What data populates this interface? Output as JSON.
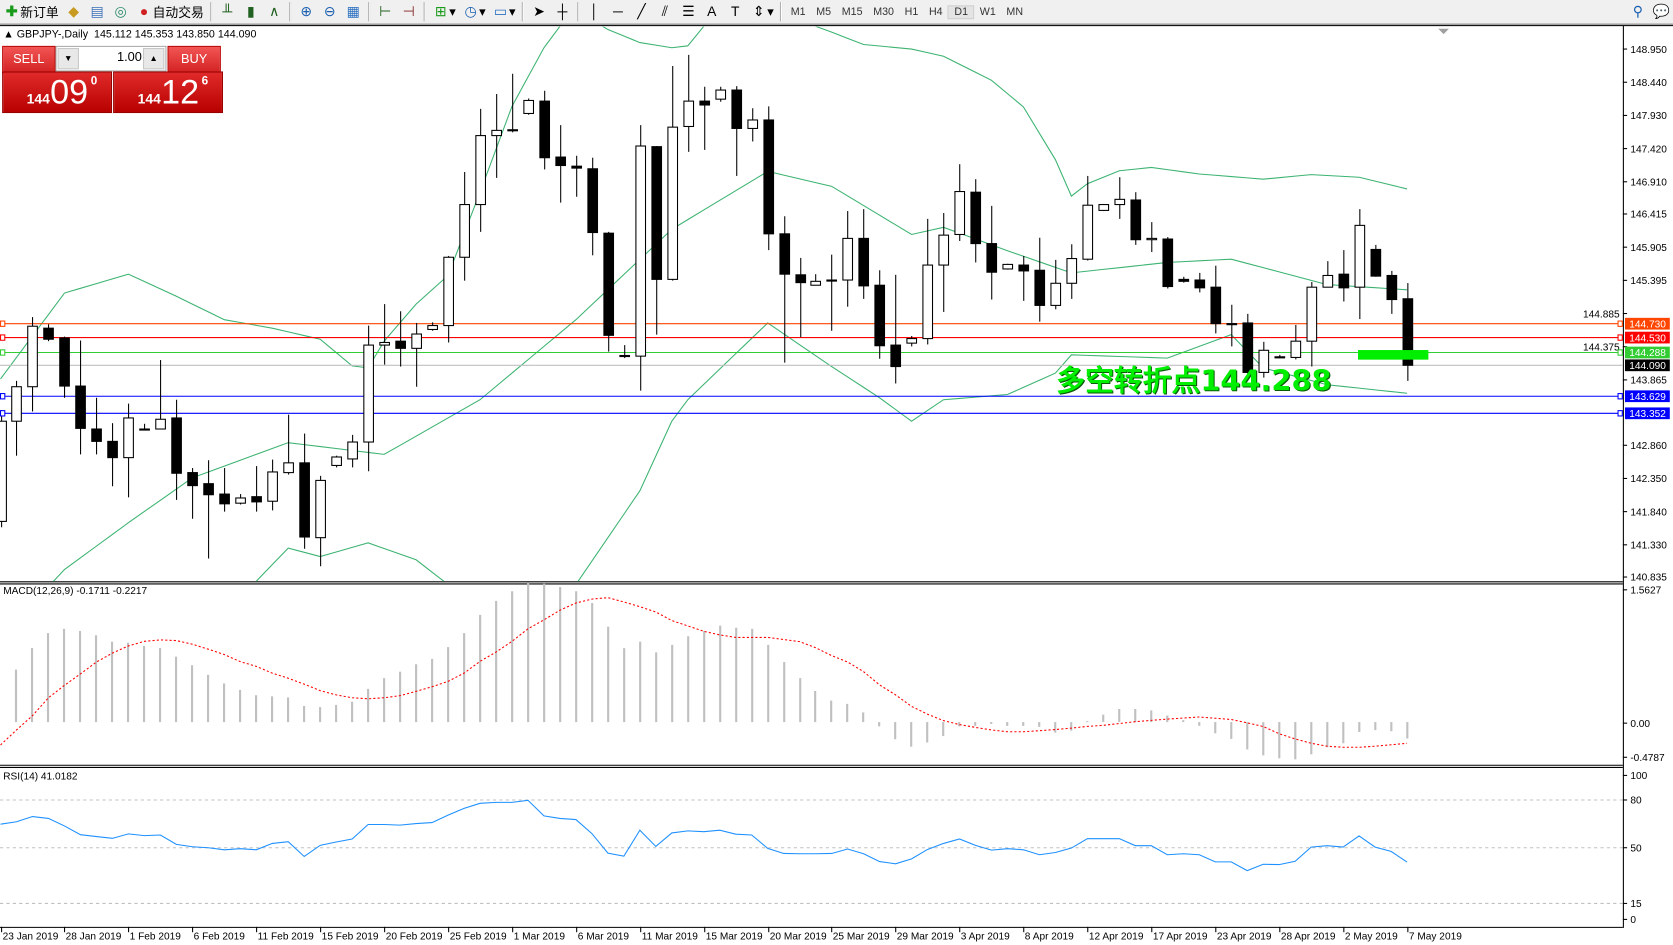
{
  "toolbar": {
    "new_order_label": "新订单",
    "auto_trading_label": "自动交易",
    "icons": [
      "new-order-icon",
      "market-watch-icon",
      "data-window-icon",
      "navigator-icon",
      "auto-trading-icon",
      "bar-chart-icon",
      "candlestick-icon",
      "line-chart-icon",
      "zoom-in-icon",
      "zoom-out-icon",
      "tile-windows-icon",
      "auto-scroll-icon",
      "chart-shift-icon",
      "indicators-icon",
      "periods-icon",
      "templates-icon",
      "cursor-icon",
      "crosshair-icon",
      "vertical-line-icon",
      "horizontal-line-icon",
      "trendline-icon",
      "equidistant-channel-icon",
      "fibonacci-icon",
      "text-icon",
      "text-label-icon",
      "arrows-icon",
      "search-icon",
      "chat-icon"
    ],
    "timeframes": [
      "M1",
      "M5",
      "M15",
      "M30",
      "H1",
      "H4",
      "D1",
      "W1",
      "MN"
    ],
    "active_timeframe": "D1"
  },
  "chart_header": {
    "symbol_label": "GBPJPY-,Daily",
    "ohlc_label": "145.112 145.353 143.850 144.090"
  },
  "one_click": {
    "sell_label": "SELL",
    "buy_label": "BUY",
    "lot": "1.00",
    "sell_price": {
      "prefix": "144",
      "big": "09",
      "sup": "0"
    },
    "buy_price": {
      "prefix": "144",
      "big": "12",
      "sup": "6"
    }
  },
  "annotation": {
    "text": "多空转折点144.288",
    "color": "#00ee00",
    "level": 144.288
  },
  "chart_data": [
    {
      "type": "candlestick",
      "symbol": "GBPJPY-",
      "timeframe": "Daily",
      "x_tick_labels": [
        "23 Jan 2019",
        "28 Jan 2019",
        "1 Feb 2019",
        "6 Feb 2019",
        "11 Feb 2019",
        "15 Feb 2019",
        "20 Feb 2019",
        "25 Feb 2019",
        "1 Mar 2019",
        "6 Mar 2019",
        "11 Mar 2019",
        "15 Mar 2019",
        "20 Mar 2019",
        "25 Mar 2019",
        "29 Mar 2019",
        "3 Apr 2019",
        "8 Apr 2019",
        "12 Apr 2019",
        "17 Apr 2019",
        "23 Apr 2019",
        "28 Apr 2019",
        "2 May 2019",
        "7 May 2019"
      ],
      "x_tick_every_bars": 4,
      "y_tick_labels": [
        "148.950",
        "148.440",
        "147.930",
        "147.420",
        "146.910",
        "146.415",
        "145.905",
        "145.395",
        "144.885",
        "144.375",
        "143.865",
        "142.860",
        "142.350",
        "141.840",
        "141.330",
        "140.835"
      ],
      "ylim": [
        140.77,
        149.26
      ],
      "candles_ohlc": [
        [
          141.69,
          143.4,
          141.6,
          143.23
        ],
        [
          143.23,
          143.85,
          142.7,
          143.76
        ],
        [
          143.76,
          144.83,
          143.38,
          144.69
        ],
        [
          144.66,
          144.72,
          144.46,
          144.49
        ],
        [
          144.51,
          144.53,
          143.59,
          143.77
        ],
        [
          143.77,
          144.47,
          142.72,
          143.12
        ],
        [
          143.11,
          143.59,
          142.72,
          142.92
        ],
        [
          142.92,
          143.2,
          142.23,
          142.67
        ],
        [
          142.67,
          143.5,
          142.06,
          143.28
        ],
        [
          143.11,
          143.19,
          143.09,
          143.11
        ],
        [
          143.11,
          144.17,
          143.11,
          143.26
        ],
        [
          143.28,
          143.56,
          142.02,
          142.43
        ],
        [
          142.44,
          142.51,
          141.73,
          142.24
        ],
        [
          142.27,
          142.63,
          141.12,
          142.1
        ],
        [
          142.11,
          142.51,
          141.84,
          141.96
        ],
        [
          141.97,
          142.11,
          141.95,
          142.05
        ],
        [
          142.07,
          142.54,
          141.84,
          141.99
        ],
        [
          142.0,
          142.64,
          141.86,
          142.45
        ],
        [
          142.44,
          143.33,
          142.41,
          142.59
        ],
        [
          142.59,
          143.04,
          141.27,
          141.45
        ],
        [
          141.44,
          142.39,
          141.0,
          142.32
        ],
        [
          142.55,
          142.7,
          142.52,
          142.68
        ],
        [
          142.65,
          143.02,
          142.52,
          142.91
        ],
        [
          142.91,
          144.7,
          142.46,
          144.4
        ],
        [
          144.4,
          145.03,
          144.1,
          144.44
        ],
        [
          144.46,
          144.92,
          144.07,
          144.35
        ],
        [
          144.35,
          144.74,
          143.76,
          144.57
        ],
        [
          144.64,
          144.75,
          144.62,
          144.7
        ],
        [
          144.7,
          145.77,
          144.44,
          145.75
        ],
        [
          145.75,
          147.06,
          145.39,
          146.56
        ],
        [
          146.56,
          148.03,
          146.14,
          147.62
        ],
        [
          147.62,
          148.26,
          146.97,
          147.7
        ],
        [
          147.71,
          148.57,
          147.67,
          147.71
        ],
        [
          147.96,
          148.19,
          147.94,
          148.16
        ],
        [
          148.15,
          148.31,
          147.1,
          147.28
        ],
        [
          147.29,
          147.78,
          146.59,
          147.16
        ],
        [
          147.15,
          147.31,
          146.68,
          147.12
        ],
        [
          147.11,
          147.28,
          145.78,
          146.13
        ],
        [
          146.12,
          146.14,
          144.3,
          144.55
        ],
        [
          144.24,
          144.4,
          144.2,
          144.24
        ],
        [
          144.23,
          147.78,
          143.7,
          147.46
        ],
        [
          147.45,
          147.46,
          144.56,
          145.41
        ],
        [
          145.41,
          148.69,
          145.39,
          147.75
        ],
        [
          147.76,
          148.86,
          147.37,
          148.15
        ],
        [
          148.15,
          148.37,
          147.4,
          148.09
        ],
        [
          148.18,
          148.37,
          148.14,
          148.32
        ],
        [
          148.32,
          148.38,
          147.0,
          147.73
        ],
        [
          147.73,
          148.04,
          147.53,
          147.86
        ],
        [
          147.86,
          148.07,
          145.86,
          146.11
        ],
        [
          146.11,
          146.38,
          144.13,
          145.49
        ],
        [
          145.48,
          145.74,
          144.52,
          145.36
        ],
        [
          145.32,
          145.49,
          145.32,
          145.38
        ],
        [
          145.4,
          145.79,
          144.62,
          145.4
        ],
        [
          145.4,
          146.46,
          144.99,
          146.04
        ],
        [
          146.04,
          146.49,
          145.11,
          145.31
        ],
        [
          145.32,
          145.55,
          144.19,
          144.39
        ],
        [
          144.4,
          145.48,
          143.81,
          144.07
        ],
        [
          144.43,
          144.54,
          144.38,
          144.5
        ],
        [
          144.5,
          146.34,
          144.41,
          145.63
        ],
        [
          145.63,
          146.43,
          144.91,
          146.09
        ],
        [
          146.1,
          147.18,
          146.0,
          146.76
        ],
        [
          146.75,
          146.95,
          145.67,
          145.96
        ],
        [
          145.96,
          146.54,
          145.1,
          145.52
        ],
        [
          145.57,
          145.65,
          145.56,
          145.64
        ],
        [
          145.63,
          145.77,
          145.08,
          145.54
        ],
        [
          145.55,
          146.05,
          144.76,
          145.01
        ],
        [
          145.01,
          145.71,
          144.95,
          145.35
        ],
        [
          145.35,
          145.95,
          145.11,
          145.73
        ],
        [
          145.72,
          147.0,
          145.7,
          146.55
        ],
        [
          146.47,
          146.57,
          146.46,
          146.56
        ],
        [
          146.56,
          146.98,
          146.34,
          146.64
        ],
        [
          146.63,
          146.75,
          145.94,
          146.02
        ],
        [
          146.02,
          146.29,
          145.83,
          146.04
        ],
        [
          146.03,
          146.06,
          145.27,
          145.3
        ],
        [
          145.41,
          145.45,
          145.36,
          145.38
        ],
        [
          145.4,
          145.51,
          145.21,
          145.28
        ],
        [
          145.29,
          145.62,
          144.58,
          144.73
        ],
        [
          144.73,
          145.02,
          144.38,
          144.73
        ],
        [
          144.74,
          144.88,
          143.9,
          143.98
        ],
        [
          143.98,
          144.45,
          143.9,
          144.32
        ],
        [
          144.22,
          144.25,
          144.2,
          144.22
        ],
        [
          144.21,
          144.71,
          144.18,
          144.46
        ],
        [
          144.46,
          145.37,
          144.07,
          145.29
        ],
        [
          145.29,
          145.69,
          145.29,
          145.47
        ],
        [
          145.49,
          145.86,
          145.07,
          145.28
        ],
        [
          145.29,
          146.49,
          144.8,
          146.24
        ],
        [
          145.87,
          145.94,
          145.45,
          145.46
        ],
        [
          145.47,
          145.54,
          144.88,
          145.1
        ],
        [
          145.112,
          145.353,
          143.85,
          144.09
        ]
      ],
      "bollinger_bands_by_bar": {
        "color": "#3cb371",
        "upper": {
          "0": 143.88,
          "2": 144.54,
          "4": 145.2,
          "8": 145.49,
          "11": 145.15,
          "14": 144.79,
          "17": 144.66,
          "20": 144.49,
          "22": 144.08,
          "23": 144.05,
          "24": 144.46,
          "26": 145.03,
          "28": 145.47,
          "30": 146.75,
          "32": 148.07,
          "34": 148.97,
          "35": 149.3,
          "36": 149.5,
          "37": 149.4,
          "38": 149.25,
          "40": 149.05,
          "42": 148.97,
          "43": 149.0,
          "44": 149.3,
          "46": 149.5,
          "48": 149.6,
          "50": 149.5,
          "51": 149.3,
          "52": 149.21,
          "54": 149.02,
          "57": 148.95,
          "59": 148.84,
          "62": 148.47,
          "64": 148.06,
          "66": 147.25,
          "67": 146.69,
          "68": 146.88,
          "70": 147.08,
          "72": 147.13,
          "75": 147.03,
          "79": 146.95,
          "82": 147.02,
          "85": 146.98,
          "88": 146.8
        },
        "middle": {
          "0": 139.9,
          "4": 140.95,
          "8": 141.67,
          "12": 142.36,
          "18": 142.9,
          "24": 142.72,
          "30": 143.56,
          "36": 144.79,
          "42": 146.18,
          "48": 147.07,
          "52": 146.84,
          "57": 146.1,
          "59": 146.21,
          "63": 145.85,
          "67": 145.51,
          "73": 145.67,
          "77": 145.72,
          "83": 145.33,
          "88": 145.25
        },
        "lower": {
          "0": 138.5,
          "8": 138.9,
          "14": 140.3,
          "16": 140.77,
          "18": 141.28,
          "20": 141.15,
          "23": 141.36,
          "26": 141.1,
          "28": 140.72,
          "32": 139.87,
          "36": 140.72,
          "40": 142.16,
          "42": 143.23,
          "43": 143.56,
          "48": 144.74,
          "52": 144.07,
          "55": 143.59,
          "57": 143.23,
          "59": 143.56,
          "63": 143.64,
          "66": 143.97,
          "67": 144.25,
          "73": 144.2,
          "77": 144.56,
          "79": 144.05,
          "83": 143.79,
          "88": 143.66
        }
      },
      "horizontal_lines": [
        {
          "price": 144.73,
          "label": "144.730",
          "color": "#ff4500"
        },
        {
          "price": 144.53,
          "label": "144.530",
          "color": "#ff0000"
        },
        {
          "price": 144.288,
          "label": "144.288",
          "color": "#32cd32"
        },
        {
          "price": 144.09,
          "label": "144.090",
          "color": "#000000",
          "line_color": "#c0c0c0"
        },
        {
          "price": 143.629,
          "label": "143.629",
          "color": "#0000ff"
        },
        {
          "price": 143.352,
          "label": "143.352",
          "color": "#0000ff"
        }
      ],
      "highlight_zone": {
        "price": 144.25,
        "color": "#00ee00",
        "from_bar": 85,
        "to_bar": 89
      }
    },
    {
      "type": "bar",
      "title": "MACD(12,26,9) -0.1711 -0.2217",
      "y_tick_labels": [
        "1.5627",
        "0.00",
        "-0.4787"
      ],
      "ylim": [
        -0.4787,
        1.5627
      ],
      "main_color": "#c0c0c0",
      "signal_color": "#ff0000",
      "main": [
        null,
        0.548,
        0.773,
        0.929,
        0.974,
        0.951,
        0.906,
        0.839,
        0.828,
        0.795,
        0.773,
        0.683,
        0.593,
        0.493,
        0.403,
        0.336,
        0.28,
        0.269,
        0.258,
        0.168,
        0.157,
        0.179,
        0.213,
        0.347,
        0.459,
        0.526,
        0.604,
        0.66,
        0.783,
        0.929,
        1.119,
        1.265,
        1.366,
        1.455,
        1.444,
        1.41,
        1.366,
        1.243,
        0.996,
        0.772,
        0.84,
        0.728,
        0.806,
        0.896,
        0.951,
        1.007,
        0.985,
        0.974,
        0.806,
        0.627,
        0.459,
        0.325,
        0.224,
        0.19,
        0.101,
        -0.045,
        -0.179,
        -0.257,
        -0.213,
        -0.146,
        -0.045,
        -0.04,
        -0.02,
        -0.04,
        -0.04,
        -0.05,
        -0.11,
        -0.09,
        0.01,
        0.078,
        0.137,
        0.137,
        0.122,
        0.068,
        0.02,
        -0.039,
        -0.117,
        -0.176,
        -0.286,
        -0.347,
        -0.378,
        -0.389,
        -0.336,
        -0.263,
        -0.221,
        -0.103,
        -0.084,
        -0.095,
        -0.1711
      ],
      "signal": [
        -0.239,
        -0.082,
        0.067,
        0.254,
        0.384,
        0.503,
        0.627,
        0.72,
        0.795,
        0.843,
        0.858,
        0.851,
        0.813,
        0.761,
        0.705,
        0.631,
        0.582,
        0.511,
        0.458,
        0.396,
        0.328,
        0.284,
        0.254,
        0.243,
        0.254,
        0.276,
        0.321,
        0.369,
        0.425,
        0.511,
        0.634,
        0.731,
        0.843,
        0.974,
        1.067,
        1.168,
        1.243,
        1.284,
        1.299,
        1.254,
        1.205,
        1.149,
        1.06,
        1.004,
        0.948,
        0.91,
        0.884,
        0.884,
        0.884,
        0.862,
        0.84,
        0.776,
        0.694,
        0.627,
        0.526,
        0.388,
        0.284,
        0.164,
        0.082,
        0.015,
        -0.026,
        -0.056,
        -0.082,
        -0.101,
        -0.101,
        -0.09,
        -0.078,
        -0.063,
        -0.045,
        -0.034,
        -0.015,
        0.004,
        0.018,
        0.031,
        0.042,
        0.053,
        0.04,
        0.027,
        -0.008,
        -0.046,
        -0.122,
        -0.176,
        -0.221,
        -0.252,
        -0.263,
        -0.263,
        -0.252,
        -0.237,
        -0.2217
      ]
    },
    {
      "type": "line",
      "title": "RSI(14) 41.0182",
      "y_tick_labels": [
        "100",
        "80",
        "50",
        "15",
        "0"
      ],
      "ylim": [
        0,
        100
      ],
      "levels": [
        80,
        50,
        15
      ],
      "color": "#1e90ff",
      "values": [
        64.8,
        66.3,
        69.6,
        68.4,
        63.7,
        58.2,
        57.0,
        55.9,
        58.7,
        57.6,
        58.0,
        52.1,
        50.6,
        50.0,
        48.7,
        49.4,
        48.7,
        52.7,
        53.8,
        44.5,
        51.5,
        53.6,
        55.5,
        64.6,
        64.6,
        64.2,
        65.2,
        65.8,
        70.5,
        74.7,
        77.9,
        78.5,
        78.5,
        79.8,
        70.0,
        68.4,
        67.7,
        58.9,
        46.6,
        44.7,
        61.0,
        50.8,
        59.3,
        60.6,
        60.1,
        61.0,
        58.5,
        58.0,
        49.6,
        46.4,
        46.2,
        46.2,
        46.4,
        49.2,
        46.2,
        41.3,
        39.9,
        43.0,
        48.9,
        52.7,
        55.5,
        51.5,
        48.5,
        49.4,
        48.7,
        45.6,
        47.0,
        49.8,
        55.7,
        55.7,
        55.7,
        51.3,
        51.3,
        45.6,
        46.2,
        45.6,
        41.1,
        41.1,
        35.6,
        39.6,
        39.4,
        41.5,
        50.4,
        51.3,
        50.4,
        57.4,
        50.4,
        47.7,
        41.0182
      ]
    }
  ]
}
